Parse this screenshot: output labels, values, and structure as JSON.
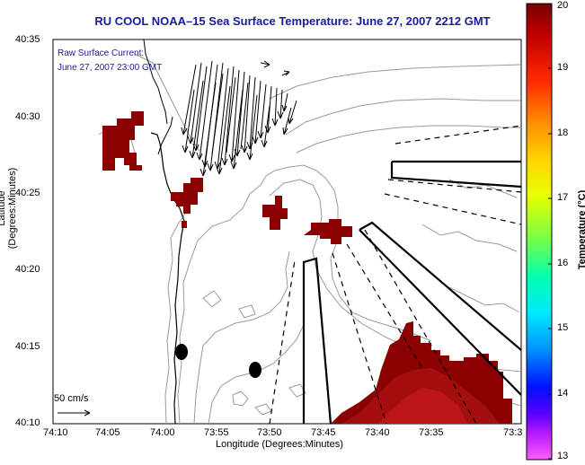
{
  "title": "RU COOL   NOAA–15  Sea Surface Temperature:  June 27, 2007 2212 GMT",
  "overlay": {
    "line1": "Raw Surface Current:",
    "line2": "June 27, 2007 23:00 GMT"
  },
  "scale_bar": {
    "label": "50 cm/s"
  },
  "axes": {
    "xlabel": "Longitude (Degrees:Minutes)",
    "ylabel": "Latitude (Degrees:Minutes)",
    "x_ticks": [
      "74:10",
      "74:05",
      "74:00",
      "73:55",
      "73:50",
      "73:45",
      "73:40",
      "73:35",
      "73:3"
    ],
    "y_ticks": [
      "40:35",
      "40:30",
      "40:25",
      "40:20",
      "40:15",
      "40:10"
    ]
  },
  "colorbar": {
    "label": "Temperature (°C)",
    "ticks": [
      "20",
      "19",
      "18",
      "17",
      "16",
      "15",
      "14",
      "13"
    ],
    "min": 13,
    "max": 20
  },
  "colors": {
    "title": "#1a1a9a",
    "sst_red": "#8b0000",
    "sst_warm": "#b01010",
    "coast": "#000000",
    "bathy": "#9a9a9a"
  }
}
